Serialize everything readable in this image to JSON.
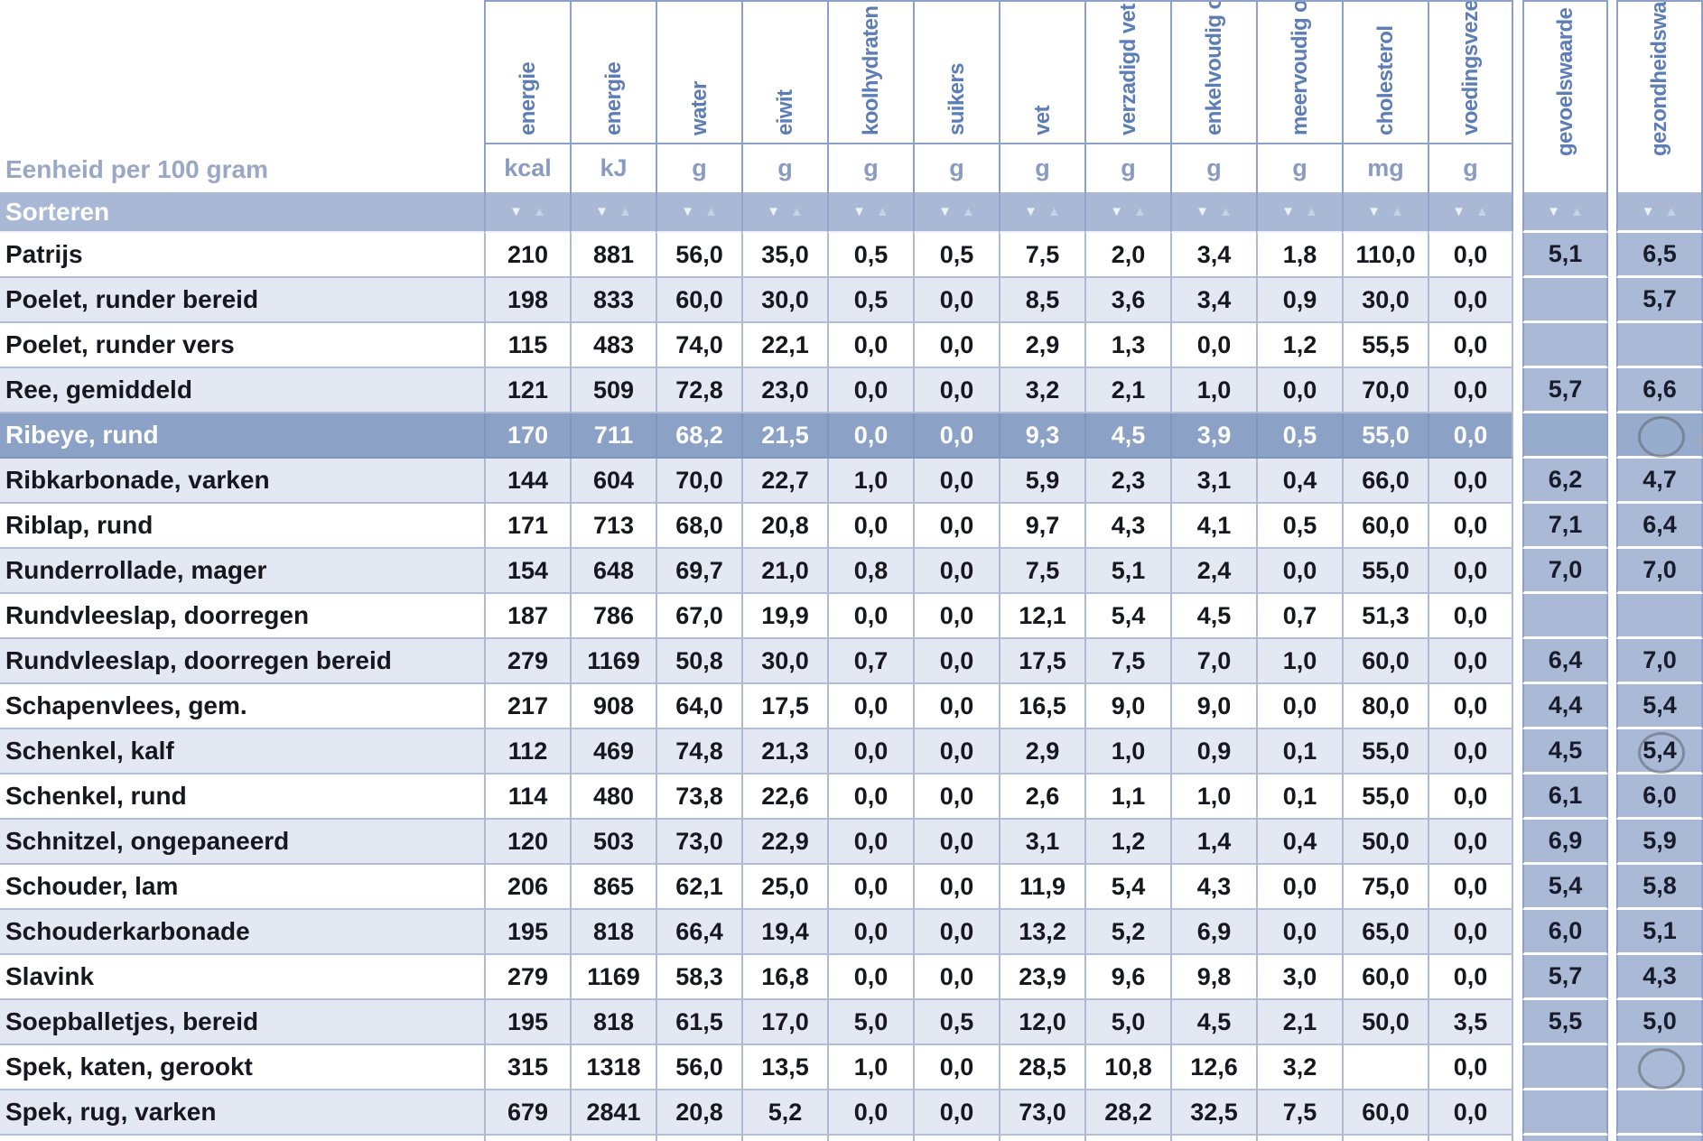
{
  "table": {
    "unit_row_label": "Eenheid per 100 gram",
    "sort_row_label": "Sorteren",
    "sort_icons": {
      "desc": "▼",
      "asc": "▲"
    },
    "columns": [
      {
        "id": "energie-kcal",
        "label": "energie",
        "unit": "kcal"
      },
      {
        "id": "energie-kj",
        "label": "energie",
        "unit": "kJ"
      },
      {
        "id": "water",
        "label": "water",
        "unit": "g"
      },
      {
        "id": "eiwit",
        "label": "eiwit",
        "unit": "g"
      },
      {
        "id": "koolhydraten",
        "label": "koolhydraten",
        "unit": "g"
      },
      {
        "id": "suikers",
        "label": "suikers",
        "unit": "g"
      },
      {
        "id": "vet",
        "label": "vet",
        "unit": "g"
      },
      {
        "id": "verzadigd-vet",
        "label": "verzadigd vet",
        "unit": "g"
      },
      {
        "id": "enkelvoudig",
        "label": "enkelvoudig o",
        "unit": "g"
      },
      {
        "id": "meervoudig",
        "label": "meervoudig o",
        "unit": "g"
      },
      {
        "id": "cholesterol",
        "label": "cholesterol",
        "unit": "mg"
      },
      {
        "id": "voedingsvezels",
        "label": "voedingsveze",
        "unit": "g"
      }
    ],
    "extra_columns": [
      {
        "id": "gevoelswaarde",
        "label": "gevoelswaarde"
      },
      {
        "id": "gezondheidswaarde",
        "label": "gezondheidswaard"
      }
    ],
    "rows": [
      {
        "name": "Patrijs",
        "values": [
          "210",
          "881",
          "56,0",
          "35,0",
          "0,5",
          "0,5",
          "7,5",
          "2,0",
          "3,4",
          "1,8",
          "110,0",
          "0,0"
        ],
        "gevoelswaarde": "5,1",
        "gezondheidswaarde": "6,5"
      },
      {
        "name": "Poelet, runder bereid",
        "values": [
          "198",
          "833",
          "60,0",
          "30,0",
          "0,5",
          "0,0",
          "8,5",
          "3,6",
          "3,4",
          "0,9",
          "30,0",
          "0,0"
        ],
        "gevoelswaarde": "",
        "gezondheidswaarde": "5,7"
      },
      {
        "name": "Poelet, runder vers",
        "values": [
          "115",
          "483",
          "74,0",
          "22,1",
          "0,0",
          "0,0",
          "2,9",
          "1,3",
          "0,0",
          "1,2",
          "55,5",
          "0,0"
        ],
        "gevoelswaarde": "",
        "gezondheidswaarde": ""
      },
      {
        "name": "Ree, gemiddeld",
        "values": [
          "121",
          "509",
          "72,8",
          "23,0",
          "0,0",
          "0,0",
          "3,2",
          "2,1",
          "1,0",
          "0,0",
          "70,0",
          "0,0"
        ],
        "gevoelswaarde": "5,7",
        "gezondheidswaarde": "6,6"
      },
      {
        "name": "Ribeye, rund",
        "selected": true,
        "values": [
          "170",
          "711",
          "68,2",
          "21,5",
          "0,0",
          "0,0",
          "9,3",
          "4,5",
          "3,9",
          "0,5",
          "55,0",
          "0,0"
        ],
        "gevoelswaarde": "",
        "gezondheidswaarde": "",
        "gezondheidswaarde_circle": true
      },
      {
        "name": "Ribkarbonade, varken",
        "values": [
          "144",
          "604",
          "70,0",
          "22,7",
          "1,0",
          "0,0",
          "5,9",
          "2,3",
          "3,1",
          "0,4",
          "66,0",
          "0,0"
        ],
        "gevoelswaarde": "6,2",
        "gezondheidswaarde": "4,7"
      },
      {
        "name": "Riblap, rund",
        "values": [
          "171",
          "713",
          "68,0",
          "20,8",
          "0,0",
          "0,0",
          "9,7",
          "4,3",
          "4,1",
          "0,5",
          "60,0",
          "0,0"
        ],
        "gevoelswaarde": "7,1",
        "gezondheidswaarde": "6,4"
      },
      {
        "name": "Runderrollade, mager",
        "values": [
          "154",
          "648",
          "69,7",
          "21,0",
          "0,8",
          "0,0",
          "7,5",
          "5,1",
          "2,4",
          "0,0",
          "55,0",
          "0,0"
        ],
        "gevoelswaarde": "7,0",
        "gezondheidswaarde": "7,0"
      },
      {
        "name": "Rundvleeslap, doorregen",
        "values": [
          "187",
          "786",
          "67,0",
          "19,9",
          "0,0",
          "0,0",
          "12,1",
          "5,4",
          "4,5",
          "0,7",
          "51,3",
          "0,0"
        ],
        "gevoelswaarde": "",
        "gezondheidswaarde": ""
      },
      {
        "name": "Rundvleeslap, doorregen bereid",
        "values": [
          "279",
          "1169",
          "50,8",
          "30,0",
          "0,7",
          "0,0",
          "17,5",
          "7,5",
          "7,0",
          "1,0",
          "60,0",
          "0,0"
        ],
        "gevoelswaarde": "6,4",
        "gezondheidswaarde": "7,0"
      },
      {
        "name": "Schapenvlees, gem.",
        "values": [
          "217",
          "908",
          "64,0",
          "17,5",
          "0,0",
          "0,0",
          "16,5",
          "9,0",
          "9,0",
          "0,0",
          "80,0",
          "0,0"
        ],
        "gevoelswaarde": "4,4",
        "gezondheidswaarde": "5,4"
      },
      {
        "name": "Schenkel, kalf",
        "values": [
          "112",
          "469",
          "74,8",
          "21,3",
          "0,0",
          "0,0",
          "2,9",
          "1,0",
          "0,9",
          "0,1",
          "55,0",
          "0,0"
        ],
        "gevoelswaarde": "4,5",
        "gezondheidswaarde": "5,4",
        "gezondheidswaarde_circle": true
      },
      {
        "name": "Schenkel, rund",
        "values": [
          "114",
          "480",
          "73,8",
          "22,6",
          "0,0",
          "0,0",
          "2,6",
          "1,1",
          "1,0",
          "0,1",
          "55,0",
          "0,0"
        ],
        "gevoelswaarde": "6,1",
        "gezondheidswaarde": "6,0"
      },
      {
        "name": "Schnitzel, ongepaneerd",
        "values": [
          "120",
          "503",
          "73,0",
          "22,9",
          "0,0",
          "0,0",
          "3,1",
          "1,2",
          "1,4",
          "0,4",
          "50,0",
          "0,0"
        ],
        "gevoelswaarde": "6,9",
        "gezondheidswaarde": "5,9"
      },
      {
        "name": "Schouder, lam",
        "values": [
          "206",
          "865",
          "62,1",
          "25,0",
          "0,0",
          "0,0",
          "11,9",
          "5,4",
          "4,3",
          "0,0",
          "75,0",
          "0,0"
        ],
        "gevoelswaarde": "5,4",
        "gezondheidswaarde": "5,8"
      },
      {
        "name": "Schouderkarbonade",
        "values": [
          "195",
          "818",
          "66,4",
          "19,4",
          "0,0",
          "0,0",
          "13,2",
          "5,2",
          "6,9",
          "0,0",
          "65,0",
          "0,0"
        ],
        "gevoelswaarde": "6,0",
        "gezondheidswaarde": "5,1"
      },
      {
        "name": "Slavink",
        "values": [
          "279",
          "1169",
          "58,3",
          "16,8",
          "0,0",
          "0,0",
          "23,9",
          "9,6",
          "9,8",
          "3,0",
          "60,0",
          "0,0"
        ],
        "gevoelswaarde": "5,7",
        "gezondheidswaarde": "4,3"
      },
      {
        "name": "Soepballetjes, bereid",
        "values": [
          "195",
          "818",
          "61,5",
          "17,0",
          "5,0",
          "0,5",
          "12,0",
          "5,0",
          "4,5",
          "2,1",
          "50,0",
          "3,5"
        ],
        "gevoelswaarde": "5,5",
        "gezondheidswaarde": "5,0"
      },
      {
        "name": "Spek, katen, gerookt",
        "values": [
          "315",
          "1318",
          "56,0",
          "13,5",
          "1,0",
          "0,0",
          "28,5",
          "10,8",
          "12,6",
          "3,2",
          "",
          "0,0"
        ],
        "gevoelswaarde": "",
        "gezondheidswaarde": "",
        "gezondheidswaarde_circle": true
      },
      {
        "name": "Spek, rug, varken",
        "values": [
          "679",
          "2841",
          "20,8",
          "5,2",
          "0,0",
          "0,0",
          "73,0",
          "28,2",
          "32,5",
          "7,5",
          "60,0",
          "0,0"
        ],
        "gevoelswaarde": "",
        "gezondheidswaarde": ""
      }
    ],
    "colors": {
      "accent_header_text": "#5d7db6",
      "sort_row_bg": "#a9b8d5",
      "selected_row_bg": "#8ba2c6",
      "alt_row_bg": "#e3e8f3",
      "score_column_bg": "#a9b9d6"
    }
  }
}
